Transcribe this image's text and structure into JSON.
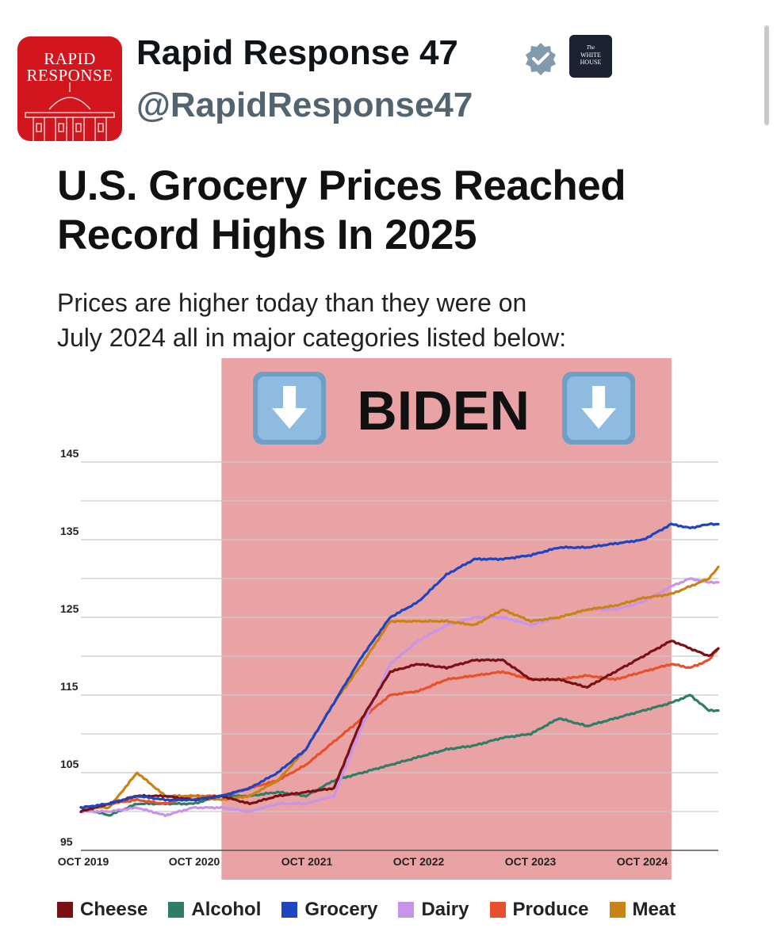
{
  "post": {
    "display_name": "Rapid Response 47",
    "handle": "@RapidResponse47",
    "avatar_text": [
      "RAPID",
      "RESPONSE"
    ],
    "verified_icon": "verified-badge-icon",
    "affiliate_badge_text": [
      "The",
      "WHITE",
      "HOUSE"
    ],
    "colors": {
      "avatar_bg": "#d3151d",
      "verified": "#829aab",
      "badge_bg": "#1d2233",
      "handle": "#536471"
    }
  },
  "graphic": {
    "title": [
      "U.S. Grocery Prices Reached",
      "Record Highs In 2025"
    ],
    "subtitle": [
      "Prices are higher today than they were on",
      "July 2024 all in major categories listed below:"
    ],
    "highlight_label": "BIDEN",
    "highlight_icon": "down-arrow-emoji-icon",
    "highlight_color": "#e9a3a5"
  },
  "chart_data": {
    "type": "line",
    "title": "",
    "xlabel": "",
    "ylabel": "",
    "ylim": [
      95,
      145
    ],
    "yticks": [
      95,
      105,
      115,
      125,
      135,
      145
    ],
    "xticks": [
      "OCT 2019",
      "OCT 2020",
      "OCT 2021",
      "OCT 2022",
      "OCT 2023",
      "OCT 2024"
    ],
    "xlim": [
      "2019-10",
      "2025-06"
    ],
    "grid": true,
    "legend_position": "bottom",
    "shaded_region": {
      "label": "BIDEN",
      "x_start": "2021-01",
      "x_end": "2025-01"
    },
    "x": [
      "2019-10",
      "2020-01",
      "2020-04",
      "2020-07",
      "2020-10",
      "2021-01",
      "2021-04",
      "2021-07",
      "2021-10",
      "2022-01",
      "2022-04",
      "2022-07",
      "2022-10",
      "2023-01",
      "2023-04",
      "2023-07",
      "2023-10",
      "2024-01",
      "2024-04",
      "2024-07",
      "2024-10",
      "2025-01",
      "2025-03",
      "2025-05",
      "2025-06"
    ],
    "series": [
      {
        "name": "Cheese",
        "color": "#7a0f14",
        "values": [
          100,
          101,
          102,
          102,
          101.5,
          102,
          101,
          102,
          102.5,
          103,
          112,
          118,
          119,
          118.5,
          119.5,
          119.5,
          117,
          117,
          116,
          118,
          120,
          122,
          121,
          120,
          121
        ]
      },
      {
        "name": "Alcohol",
        "color": "#2f7d66",
        "values": [
          100.5,
          99.5,
          101,
          101,
          101,
          102,
          102,
          102.5,
          102,
          104,
          105,
          106,
          107,
          108,
          108.5,
          109.5,
          110,
          112,
          111,
          112,
          113,
          114,
          115,
          113,
          113
        ]
      },
      {
        "name": "Grocery",
        "color": "#1f44c2",
        "values": [
          100.5,
          101,
          102,
          101.5,
          101.5,
          102,
          103,
          105,
          108,
          114,
          120,
          125,
          127,
          130.5,
          132.5,
          132.5,
          133,
          134,
          134,
          134.5,
          135,
          137,
          136.5,
          137,
          137
        ]
      },
      {
        "name": "Dairy",
        "color": "#c794e8",
        "values": [
          100,
          100,
          100.5,
          99.5,
          100.5,
          100.5,
          100,
          101,
          101,
          102,
          111,
          119,
          122,
          124,
          125,
          125,
          124,
          125,
          126,
          126,
          127,
          129,
          130,
          129.5,
          129.5
        ]
      },
      {
        "name": "Produce",
        "color": "#e8502a",
        "values": [
          100,
          101,
          101.5,
          101,
          102,
          102,
          103,
          104,
          106,
          109,
          112,
          115,
          115.5,
          117,
          117.5,
          118,
          117,
          117,
          117.5,
          117,
          118,
          119,
          118.5,
          119.5,
          121
        ]
      },
      {
        "name": "Meat",
        "color": "#c98216",
        "values": [
          100.5,
          100.5,
          105,
          102,
          102,
          101.5,
          102,
          104,
          108,
          114,
          119,
          124.5,
          124.5,
          124.5,
          124,
          126,
          124.5,
          125,
          126,
          126.5,
          127.5,
          128,
          129,
          130,
          131.5
        ]
      }
    ]
  }
}
